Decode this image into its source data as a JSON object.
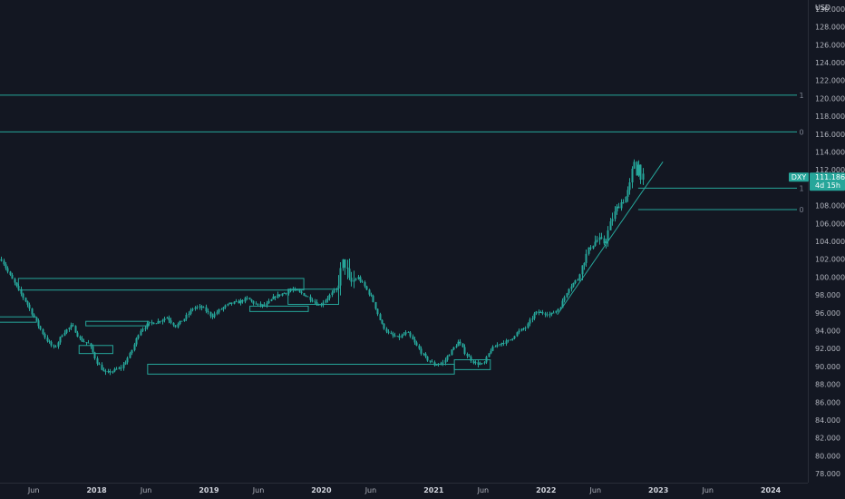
{
  "chart_data": {
    "type": "candlestick",
    "symbol": "DXY",
    "last_price": "111.186",
    "countdown": "4d 15h",
    "price_unit": "USD",
    "colors": {
      "background": "#131722",
      "up": "#26a69a",
      "down": "#26a69a",
      "drawing": "#26a69a",
      "tag": "#26a69a",
      "axis_text": "#b2b5be"
    },
    "y_ticks": [
      "78.000",
      "80.000",
      "82.000",
      "84.000",
      "86.000",
      "88.000",
      "90.000",
      "92.000",
      "94.000",
      "96.000",
      "98.000",
      "100.000",
      "102.000",
      "104.000",
      "106.000",
      "108.000",
      "110.000",
      "112.000",
      "114.000",
      "116.000",
      "118.000",
      "120.000",
      "122.000",
      "124.000",
      "126.000",
      "128.000",
      "130.000"
    ],
    "ylim": [
      77,
      131
    ],
    "x_labels": [
      {
        "t": 2017.44,
        "label": "Jun",
        "year": false
      },
      {
        "t": 2018.0,
        "label": "2018",
        "year": true
      },
      {
        "t": 2018.44,
        "label": "Jun",
        "year": false
      },
      {
        "t": 2019.0,
        "label": "2019",
        "year": true
      },
      {
        "t": 2019.44,
        "label": "Jun",
        "year": false
      },
      {
        "t": 2020.0,
        "label": "2020",
        "year": true
      },
      {
        "t": 2020.44,
        "label": "Jun",
        "year": false
      },
      {
        "t": 2021.0,
        "label": "2021",
        "year": true
      },
      {
        "t": 2021.44,
        "label": "Jun",
        "year": false
      },
      {
        "t": 2022.0,
        "label": "2022",
        "year": true
      },
      {
        "t": 2022.44,
        "label": "Jun",
        "year": false
      },
      {
        "t": 2023.0,
        "label": "2023",
        "year": true
      },
      {
        "t": 2023.44,
        "label": "Jun",
        "year": false
      },
      {
        "t": 2024.0,
        "label": "2024",
        "year": true
      }
    ],
    "xlim": [
      2017.14,
      2024.33
    ],
    "price_path": [
      [
        2017.15,
        102.0
      ],
      [
        2017.22,
        100.3
      ],
      [
        2017.3,
        98.6
      ],
      [
        2017.38,
        97.0
      ],
      [
        2017.46,
        95.0
      ],
      [
        2017.55,
        93.0
      ],
      [
        2017.62,
        92.0
      ],
      [
        2017.7,
        93.8
      ],
      [
        2017.78,
        94.6
      ],
      [
        2017.85,
        93.0
      ],
      [
        2017.93,
        92.5
      ],
      [
        2018.0,
        90.5
      ],
      [
        2018.07,
        89.2
      ],
      [
        2018.14,
        89.5
      ],
      [
        2018.22,
        89.9
      ],
      [
        2018.3,
        91.5
      ],
      [
        2018.38,
        94.0
      ],
      [
        2018.46,
        94.8
      ],
      [
        2018.54,
        95.0
      ],
      [
        2018.62,
        95.5
      ],
      [
        2018.7,
        94.5
      ],
      [
        2018.78,
        95.4
      ],
      [
        2018.86,
        96.6
      ],
      [
        2018.94,
        96.6
      ],
      [
        2019.02,
        95.6
      ],
      [
        2019.1,
        96.4
      ],
      [
        2019.18,
        97.0
      ],
      [
        2019.26,
        97.2
      ],
      [
        2019.34,
        97.6
      ],
      [
        2019.42,
        96.9
      ],
      [
        2019.5,
        96.8
      ],
      [
        2019.58,
        97.8
      ],
      [
        2019.66,
        98.2
      ],
      [
        2019.74,
        98.6
      ],
      [
        2019.82,
        98.2
      ],
      [
        2019.9,
        97.6
      ],
      [
        2019.98,
        96.8
      ],
      [
        2020.06,
        97.8
      ],
      [
        2020.13,
        98.6
      ],
      [
        2020.2,
        102.0
      ],
      [
        2020.25,
        99.2
      ],
      [
        2020.32,
        100.0
      ],
      [
        2020.38,
        99.0
      ],
      [
        2020.45,
        97.6
      ],
      [
        2020.53,
        94.8
      ],
      [
        2020.6,
        93.6
      ],
      [
        2020.68,
        93.2
      ],
      [
        2020.76,
        93.8
      ],
      [
        2020.84,
        92.4
      ],
      [
        2020.92,
        91.0
      ],
      [
        2021.0,
        90.2
      ],
      [
        2021.08,
        90.4
      ],
      [
        2021.14,
        91.5
      ],
      [
        2021.22,
        92.8
      ],
      [
        2021.28,
        91.4
      ],
      [
        2021.36,
        90.4
      ],
      [
        2021.44,
        90.2
      ],
      [
        2021.5,
        91.8
      ],
      [
        2021.58,
        92.6
      ],
      [
        2021.66,
        92.8
      ],
      [
        2021.74,
        93.8
      ],
      [
        2021.82,
        94.4
      ],
      [
        2021.9,
        96.0
      ],
      [
        2021.98,
        96.0
      ],
      [
        2022.04,
        95.8
      ],
      [
        2022.12,
        96.6
      ],
      [
        2022.2,
        98.8
      ],
      [
        2022.28,
        99.8
      ],
      [
        2022.34,
        102.0
      ],
      [
        2022.4,
        103.6
      ],
      [
        2022.46,
        104.2
      ],
      [
        2022.52,
        103.8
      ],
      [
        2022.58,
        106.4
      ],
      [
        2022.64,
        108.0
      ],
      [
        2022.7,
        108.8
      ],
      [
        2022.74,
        110.0
      ],
      [
        2022.78,
        113.2
      ],
      [
        2022.8,
        111.6
      ],
      [
        2022.82,
        112.6
      ],
      [
        2022.84,
        111.3
      ],
      [
        2022.86,
        111.2
      ]
    ],
    "horizontal_levels": [
      {
        "y": 120.4,
        "label": "1",
        "x_start": 2017.14
      },
      {
        "y": 116.3,
        "label": "0",
        "x_start": 2017.14
      },
      {
        "y": 110.0,
        "label": "1",
        "x_start": 2022.82
      },
      {
        "y": 107.6,
        "label": "0",
        "x_start": 2022.82
      }
    ],
    "rectangles": [
      {
        "t0": 2017.3,
        "t1": 2019.84,
        "y0": 98.6,
        "y1": 99.9
      },
      {
        "t0": 2019.7,
        "t1": 2020.15,
        "y0": 97.0,
        "y1": 98.7
      },
      {
        "t0": 2019.36,
        "t1": 2019.88,
        "y0": 96.2,
        "y1": 96.8
      },
      {
        "t0": 2017.13,
        "t1": 2017.46,
        "y0": 95.0,
        "y1": 95.6
      },
      {
        "t0": 2017.9,
        "t1": 2018.46,
        "y0": 94.6,
        "y1": 95.1
      },
      {
        "t0": 2017.84,
        "t1": 2018.14,
        "y0": 91.5,
        "y1": 92.4
      },
      {
        "t0": 2018.45,
        "t1": 2021.18,
        "y0": 89.2,
        "y1": 90.3
      },
      {
        "t0": 2021.18,
        "t1": 2021.5,
        "y0": 89.7,
        "y1": 90.8
      }
    ],
    "trendline": [
      [
        2022.1,
        95.8
      ],
      [
        2023.04,
        112.9
      ]
    ]
  }
}
